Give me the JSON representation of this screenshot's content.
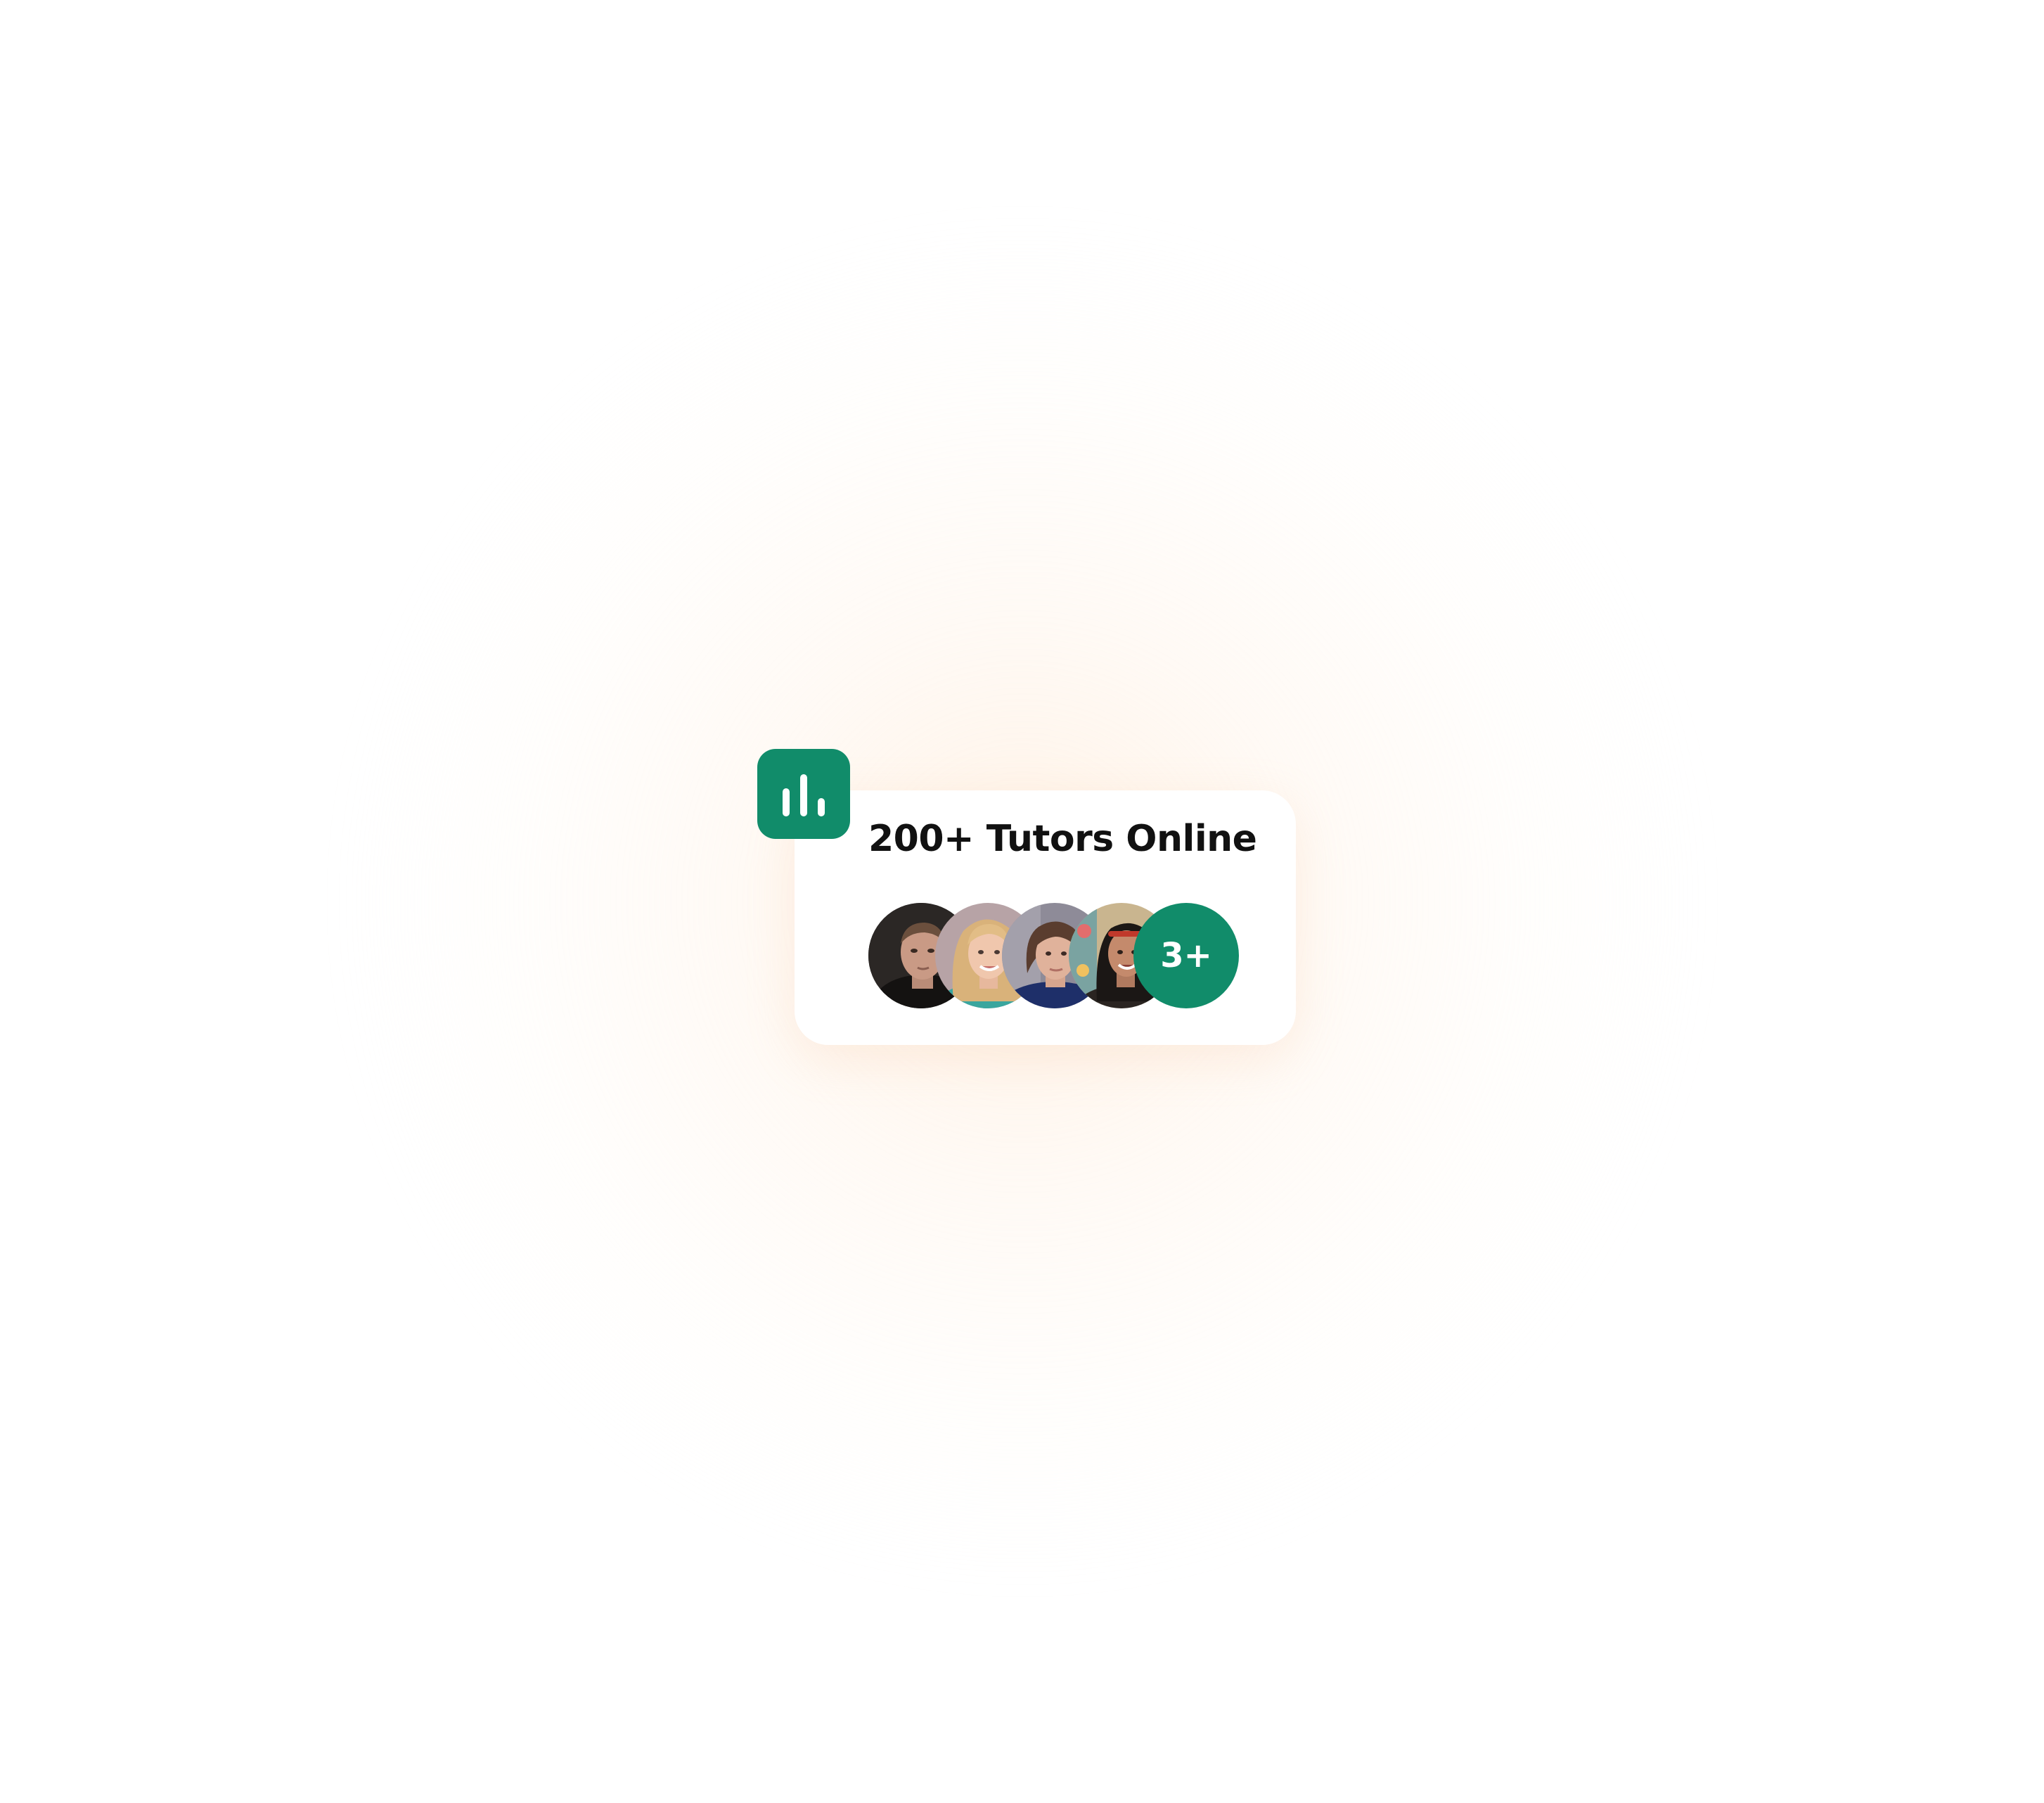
{
  "theme": {
    "accent": "#118C6A",
    "glow": "#FFF1E4"
  },
  "badge": {
    "icon": "bar-chart-icon"
  },
  "card": {
    "title": "200+ Tutors Online",
    "avatars": [
      {
        "icon": "tutor-avatar-man-photo"
      },
      {
        "icon": "tutor-avatar-blonde-woman-photo"
      },
      {
        "icon": "tutor-avatar-dark-haired-woman-photo"
      },
      {
        "icon": "tutor-avatar-smiling-woman-photo"
      }
    ],
    "more_label": "3+"
  }
}
